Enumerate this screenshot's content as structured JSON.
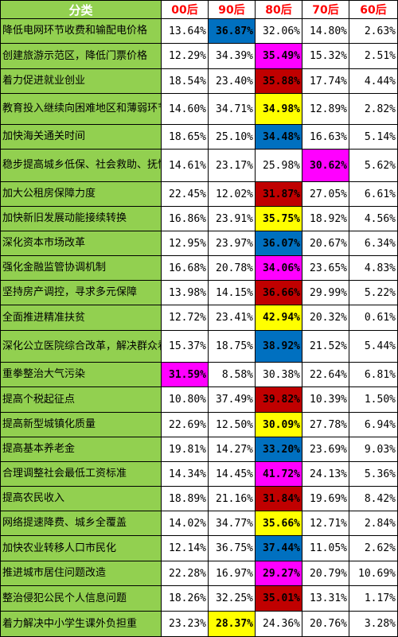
{
  "header": {
    "category": "分类",
    "generations": [
      "00后",
      "90后",
      "80后",
      "70后",
      "60后"
    ]
  },
  "highlight_colors": {
    "blue": "#0070c0",
    "magenta": "#ff00ff",
    "red": "#c00000",
    "yellow": "#ffff00",
    "category_bg": "#92d050",
    "header_text": "#ff0000"
  },
  "rows": [
    {
      "category": "降低电网环节收费和输配电价格",
      "values": [
        "13.64%",
        "36.87%",
        "32.06%",
        "14.80%",
        "2.63%"
      ],
      "hl_index": 1,
      "hl_color": "blue"
    },
    {
      "category": "创建旅游示范区，降低门票价格",
      "values": [
        "12.29%",
        "34.39%",
        "35.49%",
        "15.32%",
        "2.51%"
      ],
      "hl_index": 2,
      "hl_color": "magenta"
    },
    {
      "category": "着力促进就业创业",
      "values": [
        "18.54%",
        "23.40%",
        "35.88%",
        "17.74%",
        "4.44%"
      ],
      "hl_index": 2,
      "hl_color": "red"
    },
    {
      "category": "教育投入继续向困难地区和薄弱环节倾斜",
      "values": [
        "14.60%",
        "34.71%",
        "34.98%",
        "12.89%",
        "2.82%"
      ],
      "hl_index": 2,
      "hl_color": "yellow"
    },
    {
      "category": "加快海关通关时间",
      "values": [
        "18.65%",
        "25.10%",
        "34.48%",
        "16.63%",
        "5.14%"
      ],
      "hl_index": 2,
      "hl_color": "blue"
    },
    {
      "category": "稳步提高城乡低保、社会救助、抚恤优待等标准",
      "values": [
        "14.61%",
        "23.17%",
        "25.98%",
        "30.62%",
        "5.62%"
      ],
      "hl_index": 3,
      "hl_color": "magenta"
    },
    {
      "category": "加大公租房保障力度",
      "values": [
        "22.45%",
        "12.02%",
        "31.87%",
        "27.05%",
        "6.61%"
      ],
      "hl_index": 2,
      "hl_color": "red"
    },
    {
      "category": "加快新旧发展动能接续转换",
      "values": [
        "16.86%",
        "23.91%",
        "35.75%",
        "18.92%",
        "4.56%"
      ],
      "hl_index": 2,
      "hl_color": "yellow"
    },
    {
      "category": "深化资本市场改革",
      "values": [
        "12.95%",
        "23.97%",
        "36.07%",
        "20.67%",
        "6.34%"
      ],
      "hl_index": 2,
      "hl_color": "blue"
    },
    {
      "category": "强化金融监管协调机制",
      "values": [
        "16.68%",
        "20.78%",
        "34.06%",
        "23.65%",
        "4.83%"
      ],
      "hl_index": 2,
      "hl_color": "magenta"
    },
    {
      "category": "坚持房产调控，寻求多元保障",
      "values": [
        "13.98%",
        "14.15%",
        "36.66%",
        "29.99%",
        "5.22%"
      ],
      "hl_index": 2,
      "hl_color": "red"
    },
    {
      "category": "全面推进精准扶贫",
      "values": [
        "12.72%",
        "23.41%",
        "42.94%",
        "20.32%",
        "0.61%"
      ],
      "hl_index": 2,
      "hl_color": "yellow"
    },
    {
      "category": "深化公立医院综合改革，解决群众看病就医难题",
      "values": [
        "15.37%",
        "18.75%",
        "38.92%",
        "21.52%",
        "5.44%"
      ],
      "hl_index": 2,
      "hl_color": "blue"
    },
    {
      "category": "重拳整治大气污染",
      "values": [
        "31.59%",
        "8.58%",
        "30.38%",
        "22.64%",
        "6.81%"
      ],
      "hl_index": 0,
      "hl_color": "magenta"
    },
    {
      "category": "提高个税起征点",
      "values": [
        "10.80%",
        "37.49%",
        "39.82%",
        "10.39%",
        "1.50%"
      ],
      "hl_index": 2,
      "hl_color": "red"
    },
    {
      "category": "提高新型城镇化质量",
      "values": [
        "22.69%",
        "12.50%",
        "30.09%",
        "27.78%",
        "6.94%"
      ],
      "hl_index": 2,
      "hl_color": "yellow"
    },
    {
      "category": "提高基本养老金",
      "values": [
        "19.81%",
        "14.27%",
        "33.20%",
        "23.69%",
        "9.03%"
      ],
      "hl_index": 2,
      "hl_color": "blue"
    },
    {
      "category": "合理调整社会最低工资标准",
      "values": [
        "14.34%",
        "14.45%",
        "41.72%",
        "24.13%",
        "5.36%"
      ],
      "hl_index": 2,
      "hl_color": "magenta"
    },
    {
      "category": "提高农民收入",
      "values": [
        "18.89%",
        "21.16%",
        "31.84%",
        "19.69%",
        "8.42%"
      ],
      "hl_index": 2,
      "hl_color": "red"
    },
    {
      "category": "网络提速降费、城乡全覆盖",
      "values": [
        "14.02%",
        "34.77%",
        "35.66%",
        "12.71%",
        "2.84%"
      ],
      "hl_index": 2,
      "hl_color": "yellow"
    },
    {
      "category": "加快农业转移人口市民化",
      "values": [
        "12.14%",
        "36.75%",
        "37.44%",
        "11.05%",
        "2.62%"
      ],
      "hl_index": 2,
      "hl_color": "blue"
    },
    {
      "category": "推进城市居住问题改造",
      "values": [
        "22.28%",
        "16.97%",
        "29.27%",
        "20.79%",
        "10.69%"
      ],
      "hl_index": 2,
      "hl_color": "magenta"
    },
    {
      "category": "整治侵犯公民个人信息问题",
      "values": [
        "18.26%",
        "32.25%",
        "35.01%",
        "13.31%",
        "1.17%"
      ],
      "hl_index": 2,
      "hl_color": "red"
    },
    {
      "category": "着力解决中小学生课外负担重",
      "values": [
        "23.23%",
        "28.37%",
        "24.36%",
        "20.76%",
        "3.28%"
      ],
      "hl_index": 1,
      "hl_color": "yellow"
    }
  ]
}
